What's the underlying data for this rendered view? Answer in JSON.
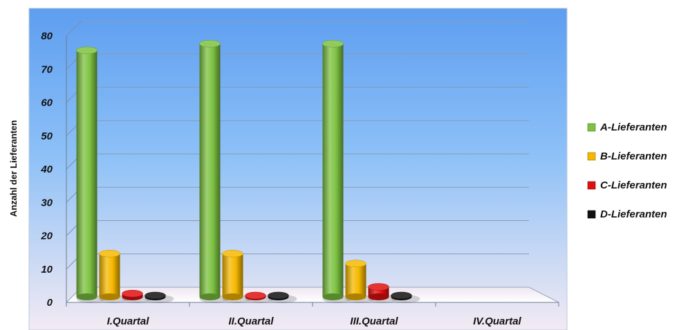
{
  "chart_data": {
    "type": "bar",
    "title": "",
    "xlabel": "",
    "ylabel": "Anzahl der Lieferanten",
    "ylim": [
      0,
      80
    ],
    "yticks": [
      0,
      10,
      20,
      30,
      40,
      50,
      60,
      70,
      80
    ],
    "grid": true,
    "legend_position": "right",
    "categories": [
      "I.Quartal",
      "II.Quartal",
      "III.Quartal",
      "IV.Quartal"
    ],
    "series": [
      {
        "name": "A-Lieferanten",
        "color": "#7dc242",
        "values": [
          74,
          76,
          76,
          null
        ]
      },
      {
        "name": "B-Lieferanten",
        "color": "#f5b800",
        "values": [
          13,
          13,
          10,
          null
        ]
      },
      {
        "name": "C-Lieferanten",
        "color": "#e01010",
        "values": [
          1,
          0,
          3,
          null
        ]
      },
      {
        "name": "D-Lieferanten",
        "color": "#111111",
        "values": [
          0,
          0,
          0,
          null
        ]
      }
    ]
  }
}
